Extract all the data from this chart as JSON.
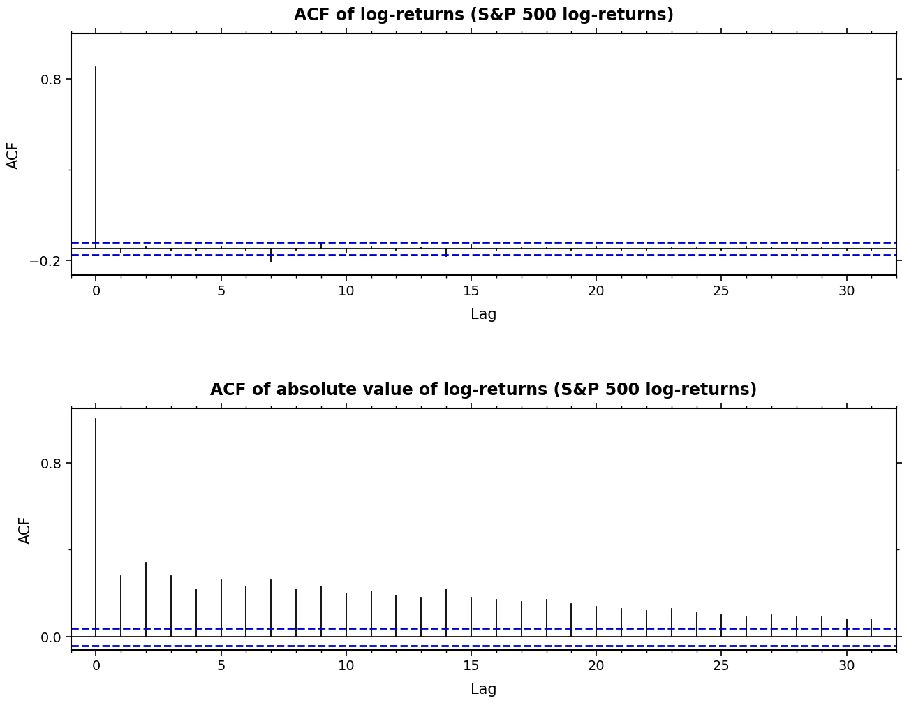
{
  "title1": "ACF of log-returns (S&P 500 log-returns)",
  "title2": "ACF of absolute value of log-returns (S&P 500 log-returns)",
  "xlabel": "Lag",
  "ylabel": "ACF",
  "acf1_lags": [
    0,
    1,
    2,
    3,
    4,
    5,
    6,
    7,
    8,
    9,
    10,
    11,
    12,
    13,
    14,
    15,
    16,
    17,
    18,
    19,
    20,
    21,
    22,
    23,
    24,
    25,
    26,
    27,
    28,
    29,
    30,
    31
  ],
  "acf1_values": [
    1.0,
    -0.02,
    0.01,
    -0.01,
    -0.01,
    0.01,
    -0.005,
    -0.07,
    -0.005,
    0.03,
    -0.02,
    0.01,
    -0.005,
    0.005,
    -0.04,
    0.02,
    -0.01,
    0.005,
    0.005,
    -0.005,
    0.01,
    -0.005,
    -0.005,
    0.005,
    0.005,
    -0.005,
    0.01,
    0.005,
    -0.005,
    0.005,
    -0.005,
    -0.01
  ],
  "acf2_lags": [
    0,
    1,
    2,
    3,
    4,
    5,
    6,
    7,
    8,
    9,
    10,
    11,
    12,
    13,
    14,
    15,
    16,
    17,
    18,
    19,
    20,
    21,
    22,
    23,
    24,
    25,
    26,
    27,
    28,
    29,
    30,
    31
  ],
  "acf2_values": [
    1.0,
    0.28,
    0.34,
    0.28,
    0.22,
    0.26,
    0.23,
    0.26,
    0.22,
    0.23,
    0.2,
    0.21,
    0.19,
    0.18,
    0.22,
    0.18,
    0.17,
    0.16,
    0.17,
    0.15,
    0.14,
    0.13,
    0.12,
    0.13,
    0.11,
    0.1,
    0.09,
    0.1,
    0.09,
    0.09,
    0.08,
    0.08
  ],
  "ylim1": [
    -0.28,
    1.05
  ],
  "ylim2": [
    -0.06,
    1.05
  ],
  "yticks1": [
    -0.2,
    0.8
  ],
  "yticks2": [
    0.0,
    0.8
  ],
  "conf1_upper": -0.1,
  "conf1_lower": -0.17,
  "conf2_upper": 0.04,
  "conf2_lower": -0.04,
  "zero_line1": -0.135,
  "zero_line2": 0.0,
  "bar_color": "#000000",
  "conf_color": "#0000cc",
  "bg_color": "#ffffff",
  "title_fontsize": 17,
  "label_fontsize": 15,
  "tick_fontsize": 14
}
